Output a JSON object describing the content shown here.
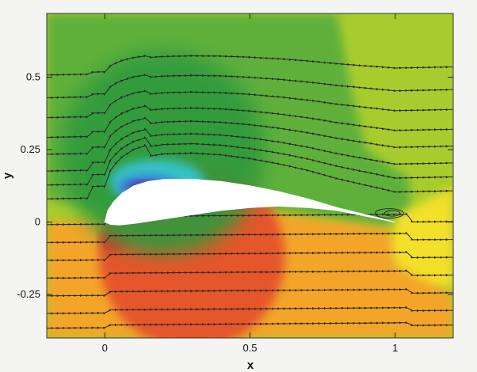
{
  "chart_data": {
    "type": "heatmap",
    "title": "",
    "xlabel": "x",
    "ylabel": "y",
    "xlim": [
      -0.2,
      1.2
    ],
    "ylim": [
      -0.4,
      0.72
    ],
    "x_ticks": [
      {
        "value": 0,
        "label": "0"
      },
      {
        "value": 0.5,
        "label": "0.5"
      },
      {
        "value": 1,
        "label": "1"
      }
    ],
    "y_ticks": [
      {
        "value": 0.5,
        "label": "0.5"
      },
      {
        "value": 0.25,
        "label": "0.25"
      },
      {
        "value": 0,
        "label": "0"
      },
      {
        "value": -0.25,
        "label": "-0.25"
      }
    ],
    "grid": false,
    "colors": {
      "low_pressure_dark": "#5b2ca0",
      "low_pressure_blue": "#3a7fd6",
      "cyan": "#36c2c8",
      "dark_green": "#2f9a3e",
      "green": "#5fb03a",
      "yellow_green": "#a8cc2e",
      "yellow": "#f3e02a",
      "orange": "#f3a52a",
      "red_orange": "#e5562a",
      "red": "#d63b2c",
      "airfoil": "#ffffff",
      "streamline": "#2a2a2a"
    },
    "airfoil": {
      "upper": [
        [
          0,
          0
        ],
        [
          0.01,
          0.04
        ],
        [
          0.03,
          0.07
        ],
        [
          0.06,
          0.1
        ],
        [
          0.1,
          0.125
        ],
        [
          0.15,
          0.14
        ],
        [
          0.2,
          0.147
        ],
        [
          0.3,
          0.148
        ],
        [
          0.4,
          0.14
        ],
        [
          0.5,
          0.125
        ],
        [
          0.6,
          0.105
        ],
        [
          0.7,
          0.08
        ],
        [
          0.8,
          0.05
        ],
        [
          0.9,
          0.025
        ],
        [
          1.0,
          0
        ]
      ],
      "lower": [
        [
          1.0,
          0
        ],
        [
          0.9,
          0.02
        ],
        [
          0.8,
          0.04
        ],
        [
          0.7,
          0.05
        ],
        [
          0.6,
          0.055
        ],
        [
          0.5,
          0.05
        ],
        [
          0.4,
          0.04
        ],
        [
          0.3,
          0.025
        ],
        [
          0.2,
          0.01
        ],
        [
          0.1,
          -0.005
        ],
        [
          0.05,
          -0.01
        ],
        [
          0.02,
          -0.008
        ],
        [
          0,
          0
        ]
      ]
    },
    "streamlines_left_y": [
      0.5,
      0.42,
      0.35,
      0.28,
      0.22,
      0.16,
      0.11,
      0.06,
      -0.02,
      -0.08,
      -0.14,
      -0.2,
      -0.26,
      -0.32,
      -0.37
    ]
  }
}
